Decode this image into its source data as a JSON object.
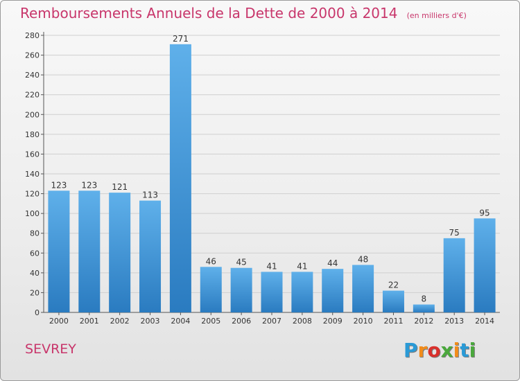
{
  "chart_data": {
    "type": "bar",
    "title": "Remboursements Annuels de la Dette de 2000 à 2014",
    "subtitle": "(en milliers d'€)",
    "categories": [
      "2000",
      "2001",
      "2002",
      "2003",
      "2004",
      "2005",
      "2006",
      "2007",
      "2008",
      "2009",
      "2010",
      "2011",
      "2012",
      "2013",
      "2014"
    ],
    "values": [
      123,
      123,
      121,
      113,
      271,
      46,
      45,
      41,
      41,
      44,
      48,
      22,
      8,
      75,
      95
    ],
    "ylim": [
      0,
      280
    ],
    "yticks": [
      0,
      20,
      40,
      60,
      80,
      100,
      120,
      140,
      160,
      180,
      200,
      220,
      240,
      260,
      280
    ],
    "grid": true,
    "bar_color": "#3d8fd6"
  },
  "footer": {
    "commune": "SEVREY",
    "logo_text": "Proxiti",
    "logo_colors": [
      "#2a9ad6",
      "#f28c1a",
      "#d9302c",
      "#4aa83c",
      "#f28c1a",
      "#2a9ad6",
      "#4aa83c"
    ]
  }
}
